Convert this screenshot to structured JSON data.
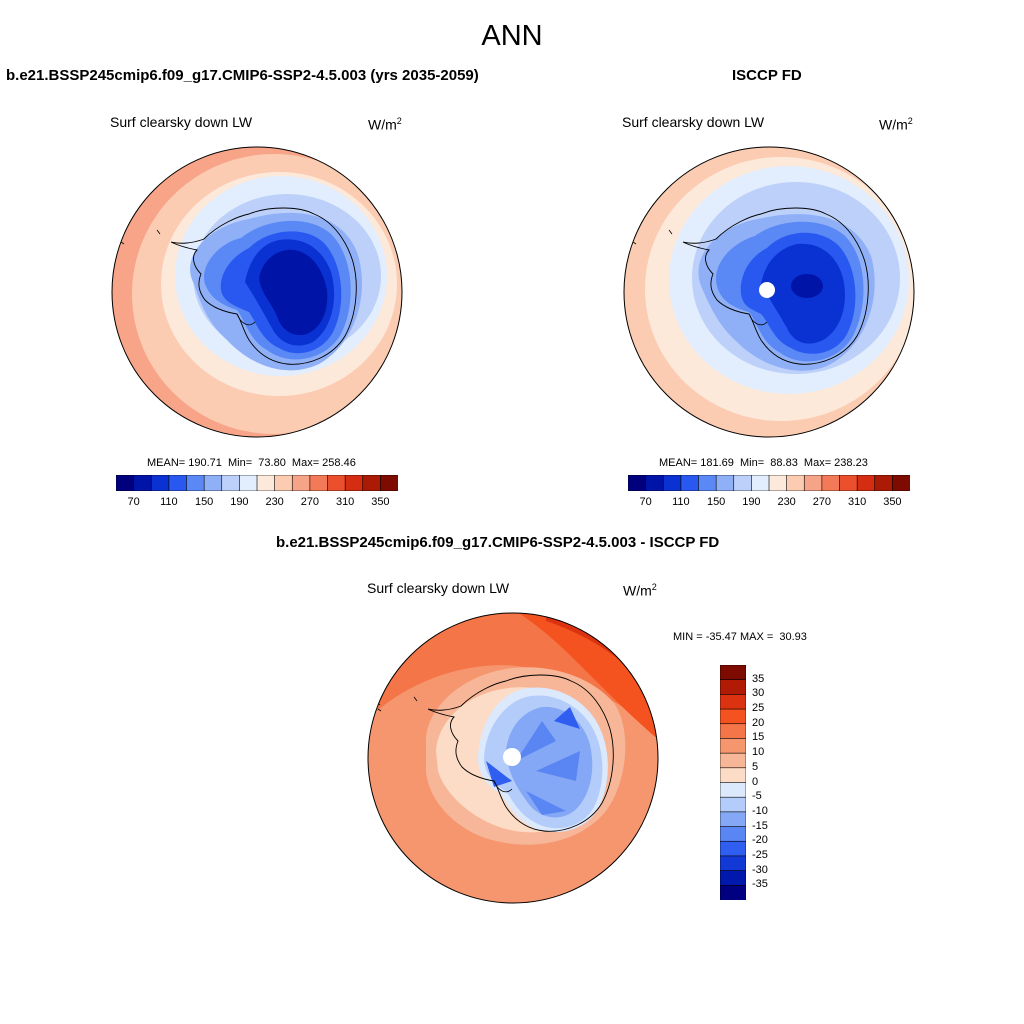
{
  "figure_title": "ANN",
  "panels": {
    "model": {
      "title": "b.e21.BSSP245cmip6.f09_g17.CMIP6-SSP2-4.5.003 (yrs 2035-2059)",
      "variable": "Surf clearsky down LW",
      "units_base": "W/m",
      "units_exp": "2",
      "stats": "MEAN= 190.71  Min=  73.80  Max= 258.46"
    },
    "obs": {
      "title": "ISCCP FD",
      "variable": "Surf clearsky down LW",
      "units_base": "W/m",
      "units_exp": "2",
      "stats": "MEAN= 181.69  Min=  88.83  Max= 238.23"
    },
    "diff": {
      "title": "b.e21.BSSP245cmip6.f09_g17.CMIP6-SSP2-4.5.003 - ISCCP FD",
      "variable": "Surf clearsky down LW",
      "units_base": "W/m",
      "units_exp": "2",
      "stats": "MIN = -35.47 MAX =  30.93"
    }
  },
  "colorbars": {
    "absolute": {
      "tick_labels": [
        "70",
        "110",
        "150",
        "190",
        "230",
        "270",
        "310",
        "350"
      ],
      "colors": [
        "#00007e",
        "#0014a8",
        "#0a32d2",
        "#2858f0",
        "#5a88f5",
        "#8fb0f7",
        "#bcd0fa",
        "#e2edfd",
        "#fde9da",
        "#fbcbb2",
        "#f6a488",
        "#f37a58",
        "#ec4f2c",
        "#d42d12",
        "#ab1a05",
        "#7d0b00"
      ]
    },
    "difference": {
      "tick_labels": [
        "35",
        "30",
        "25",
        "20",
        "15",
        "10",
        "5",
        "0",
        "-5",
        "-10",
        "-15",
        "-20",
        "-25",
        "-30",
        "-35"
      ],
      "colors": [
        "#7d0b00",
        "#b11b05",
        "#db3311",
        "#f4531f",
        "#f47548",
        "#f5966f",
        "#f7b697",
        "#fcdcc6",
        "#dce8fc",
        "#b3ccfa",
        "#85a8f6",
        "#5a86f3",
        "#2f5ef0",
        "#1238d6",
        "#0018ac",
        "#000080"
      ]
    }
  }
}
